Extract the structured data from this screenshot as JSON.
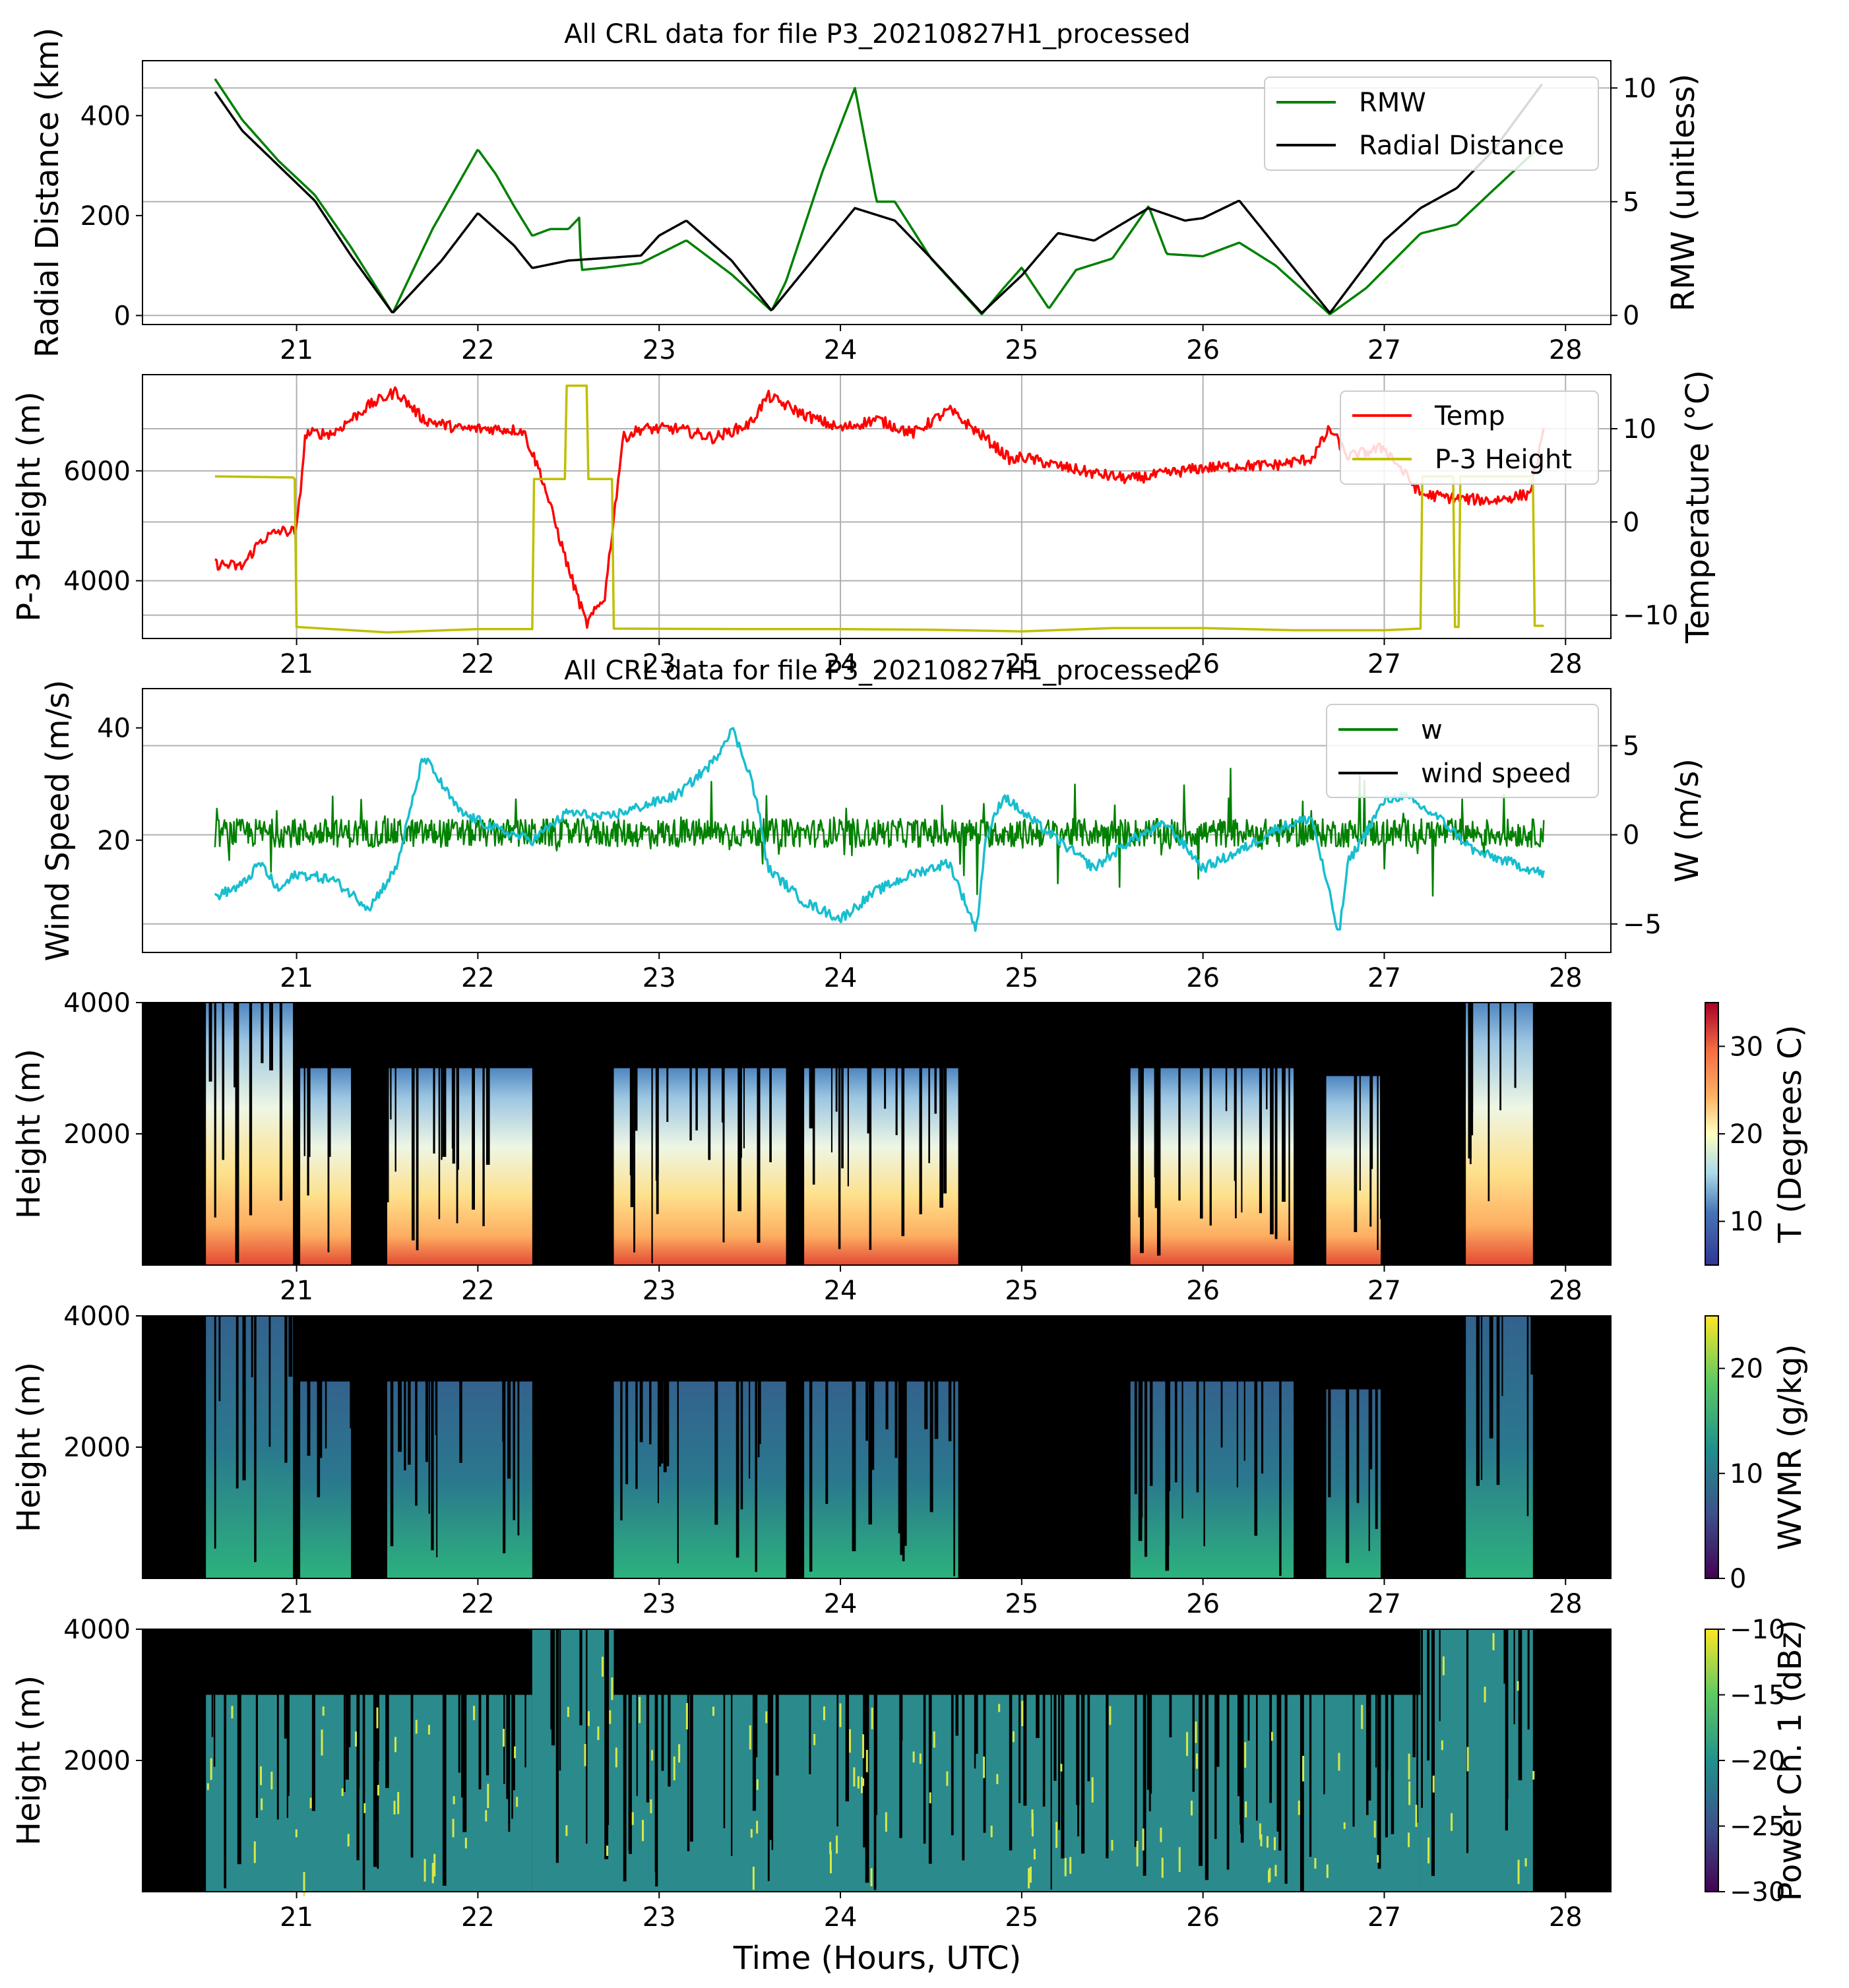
{
  "colors": {
    "rmw": "#008000",
    "radial": "#000000",
    "temp": "#ff0000",
    "height": "#bfbf00",
    "w": "#008000",
    "wind": "#17becf",
    "grid": "#b0b0b0"
  },
  "chart_data": [
    {
      "type": "line",
      "title": "All CRL data for file P3_20210827H1_processed",
      "xlim": [
        20.15,
        28.25
      ],
      "x_ticks": [
        "21",
        "22",
        "23",
        "24",
        "25",
        "26",
        "27",
        "28"
      ],
      "left": {
        "label": "Radial Distance (km)",
        "ylim": [
          -18,
          510
        ],
        "ticks": [
          "0",
          "200",
          "400"
        ]
      },
      "right": {
        "label": "RMW (unitless)",
        "ylim": [
          -0.4,
          11.2
        ],
        "ticks": [
          "0",
          "5",
          "10"
        ]
      },
      "grid": "right-axis",
      "legend": {
        "position": "top-right",
        "entries": [
          "RMW",
          "Radial Distance"
        ]
      },
      "series": [
        {
          "name": "RMW",
          "axis": "right",
          "x": [
            20.55,
            20.7,
            20.9,
            21.1,
            21.3,
            21.53,
            21.75,
            22.0,
            22.1,
            22.2,
            22.3,
            22.4,
            22.5,
            22.56,
            22.57,
            22.7,
            22.9,
            23.15,
            23.4,
            23.62,
            23.7,
            23.9,
            24.08,
            24.2,
            24.3,
            24.5,
            24.78,
            24.9,
            25.0,
            25.15,
            25.3,
            25.5,
            25.7,
            25.8,
            26.0,
            26.2,
            26.4,
            26.7,
            26.9,
            27.2,
            27.4,
            27.6,
            27.87
          ],
          "y": [
            10.4,
            8.6,
            6.8,
            5.3,
            3.0,
            0.1,
            3.8,
            7.3,
            6.2,
            4.8,
            3.5,
            3.8,
            3.8,
            4.3,
            2.0,
            2.1,
            2.3,
            3.3,
            1.8,
            0.2,
            1.5,
            6.3,
            10.0,
            5.0,
            5.0,
            2.5,
            0.05,
            1.2,
            2.1,
            0.3,
            2.0,
            2.5,
            4.8,
            2.7,
            2.6,
            3.2,
            2.2,
            0.05,
            1.2,
            3.6,
            4.0,
            5.5,
            7.5
          ]
        },
        {
          "name": "Radial Distance",
          "axis": "left",
          "x": [
            20.55,
            20.7,
            20.9,
            21.1,
            21.3,
            21.53,
            21.8,
            22.0,
            22.2,
            22.3,
            22.5,
            22.7,
            22.9,
            23.0,
            23.15,
            23.4,
            23.62,
            23.8,
            24.08,
            24.3,
            24.5,
            24.78,
            25.0,
            25.2,
            25.4,
            25.7,
            25.9,
            26.0,
            26.2,
            26.4,
            26.7,
            27.0,
            27.2,
            27.4,
            27.6,
            27.87
          ],
          "y": [
            448,
            370,
            300,
            230,
            120,
            5,
            110,
            205,
            140,
            95,
            110,
            115,
            120,
            160,
            190,
            110,
            10,
            90,
            215,
            190,
            115,
            5,
            80,
            165,
            150,
            215,
            190,
            195,
            230,
            140,
            5,
            150,
            215,
            255,
            330,
            463
          ]
        }
      ]
    },
    {
      "type": "line",
      "xlim": [
        20.15,
        28.25
      ],
      "x_ticks": [
        "21",
        "22",
        "23",
        "24",
        "25",
        "26",
        "27",
        "28"
      ],
      "left": {
        "label": "P-3 Height (m)",
        "ylim": [
          2950,
          7750
        ],
        "ticks": [
          "4000",
          "6000"
        ]
      },
      "right": {
        "label": "Temperature (°C)",
        "ylim": [
          -12.5,
          15.8
        ],
        "ticks": [
          "-10",
          "0",
          "10"
        ]
      },
      "grid": "both",
      "legend": {
        "position": "top-right",
        "entries": [
          "Temp",
          "P-3 Height"
        ]
      },
      "series": [
        {
          "name": "Temp",
          "axis": "right",
          "x": [
            20.55,
            20.7,
            20.8,
            20.9,
            21.0,
            21.05,
            21.2,
            21.4,
            21.55,
            21.7,
            21.9,
            22.1,
            22.25,
            22.35,
            22.5,
            22.6,
            22.7,
            22.8,
            22.9,
            23.1,
            23.3,
            23.5,
            23.6,
            23.8,
            24.0,
            24.2,
            24.4,
            24.6,
            24.8,
            24.95,
            25.0,
            25.2,
            25.4,
            25.6,
            25.8,
            26.0,
            26.2,
            26.4,
            26.6,
            26.7,
            26.8,
            27.0,
            27.2,
            27.4,
            27.6,
            27.8,
            27.88
          ],
          "y": [
            -4.5,
            -4.8,
            -2.0,
            -1.0,
            -1.0,
            9.5,
            9.5,
            12.5,
            14.0,
            11.0,
            10.0,
            10.0,
            9.8,
            5.0,
            -5.0,
            -11.0,
            -8.0,
            9.0,
            10.0,
            10.0,
            9.0,
            10.5,
            13.5,
            11.5,
            10.0,
            11.0,
            9.5,
            12.0,
            9.0,
            6.5,
            7.0,
            6.0,
            5.2,
            4.6,
            5.2,
            5.8,
            6.0,
            6.1,
            6.8,
            10.0,
            7.0,
            8.0,
            3.0,
            2.5,
            2.3,
            3.0,
            9.5
          ]
        },
        {
          "name": "P-3 Height",
          "axis": "left",
          "x": [
            20.55,
            20.95,
            20.98,
            20.99,
            21.0,
            21.5,
            22.0,
            22.3,
            22.31,
            22.48,
            22.49,
            22.6,
            22.61,
            22.74,
            22.75,
            23.5,
            24.0,
            24.5,
            25.0,
            25.5,
            26.0,
            26.5,
            27.0,
            27.2,
            27.21,
            27.38,
            27.39,
            27.41,
            27.42,
            27.82,
            27.83,
            27.88
          ],
          "y": [
            5900,
            5880,
            5880,
            5850,
            3160,
            3060,
            3120,
            3120,
            5850,
            5850,
            7550,
            7550,
            5850,
            5850,
            3130,
            3120,
            3120,
            3110,
            3080,
            3140,
            3140,
            3100,
            3100,
            3130,
            5900,
            5900,
            3160,
            3160,
            5900,
            5900,
            3180,
            3180
          ]
        }
      ]
    },
    {
      "type": "line",
      "title": "All CRL data for file P3_20210827H1_processed",
      "xlim": [
        20.15,
        28.25
      ],
      "x_ticks": [
        "21",
        "22",
        "23",
        "24",
        "25",
        "26",
        "27",
        "28"
      ],
      "left": {
        "label": "Wind Speed (m/s)",
        "ylim": [
          0,
          47
        ],
        "ticks": [
          "20",
          "40"
        ]
      },
      "right": {
        "label": "W (m/s)",
        "ylim": [
          -6.6,
          8.2
        ],
        "ticks": [
          "-5",
          "0",
          "5"
        ]
      },
      "grid": "right-axis",
      "legend": {
        "position": "top-right",
        "entries": [
          "w",
          "wind speed"
        ]
      },
      "series": [
        {
          "name": "w",
          "axis": "right",
          "x": [
            20.55,
            27.88
          ],
          "y_range": [
            -5.8,
            7.8
          ],
          "mean": 0.1
        },
        {
          "name": "wind speed",
          "axis": "left",
          "x": [
            20.55,
            20.7,
            20.8,
            20.9,
            21.0,
            21.2,
            21.4,
            21.55,
            21.7,
            21.9,
            22.1,
            22.3,
            22.5,
            22.7,
            22.9,
            23.1,
            23.3,
            23.4,
            23.5,
            23.55,
            23.6,
            23.8,
            24.0,
            24.2,
            24.4,
            24.6,
            24.75,
            24.8,
            24.9,
            25.0,
            25.2,
            25.4,
            25.6,
            25.8,
            26.0,
            26.2,
            26.4,
            26.6,
            26.7,
            26.75,
            26.8,
            27.0,
            27.1,
            27.3,
            27.5,
            27.7,
            27.88
          ],
          "y": [
            10,
            12,
            16,
            11,
            14,
            13,
            8,
            15,
            35,
            25,
            22,
            20,
            25,
            24,
            26,
            28,
            34,
            40,
            32,
            25,
            15,
            9,
            6,
            11,
            14,
            16,
            4,
            20,
            28,
            25,
            20,
            15,
            20,
            23,
            15,
            18,
            22,
            24,
            10,
            3,
            16,
            27,
            28,
            24,
            18,
            16,
            14
          ]
        }
      ]
    },
    {
      "type": "heatmap",
      "xlim": [
        20.15,
        28.25
      ],
      "x_ticks": [
        "21",
        "22",
        "23",
        "24",
        "25",
        "26",
        "27",
        "28"
      ],
      "ylabel": "Height (m)",
      "ylim": [
        0,
        4000
      ],
      "y_ticks": [
        "2000",
        "4000"
      ],
      "colorbar": {
        "label": "T (Degrees C)",
        "range": [
          5,
          35
        ],
        "ticks": [
          "10",
          "20",
          "30"
        ],
        "colormap": "RdYlBu_r"
      }
    },
    {
      "type": "heatmap",
      "xlim": [
        20.15,
        28.25
      ],
      "x_ticks": [
        "21",
        "22",
        "23",
        "24",
        "25",
        "26",
        "27",
        "28"
      ],
      "ylabel": "Height (m)",
      "ylim": [
        0,
        4000
      ],
      "y_ticks": [
        "2000",
        "4000"
      ],
      "colorbar": {
        "label": "WVMR (g/kg)",
        "range": [
          0,
          25
        ],
        "ticks": [
          "0",
          "10",
          "20"
        ],
        "colormap": "viridis"
      }
    },
    {
      "type": "heatmap",
      "xlim": [
        20.15,
        28.25
      ],
      "x_ticks": [
        "21",
        "22",
        "23",
        "24",
        "25",
        "26",
        "27",
        "28"
      ],
      "xlabel": "Time (Hours, UTC)",
      "ylabel": "Height (m)",
      "ylim": [
        0,
        4000
      ],
      "y_ticks": [
        "2000",
        "4000"
      ],
      "colorbar": {
        "label": "Power Ch. 1 (dBz)",
        "range": [
          -30,
          -10
        ],
        "ticks": [
          "-30",
          "-25",
          "-20",
          "-15",
          "-10"
        ],
        "colormap": "viridis"
      }
    }
  ]
}
